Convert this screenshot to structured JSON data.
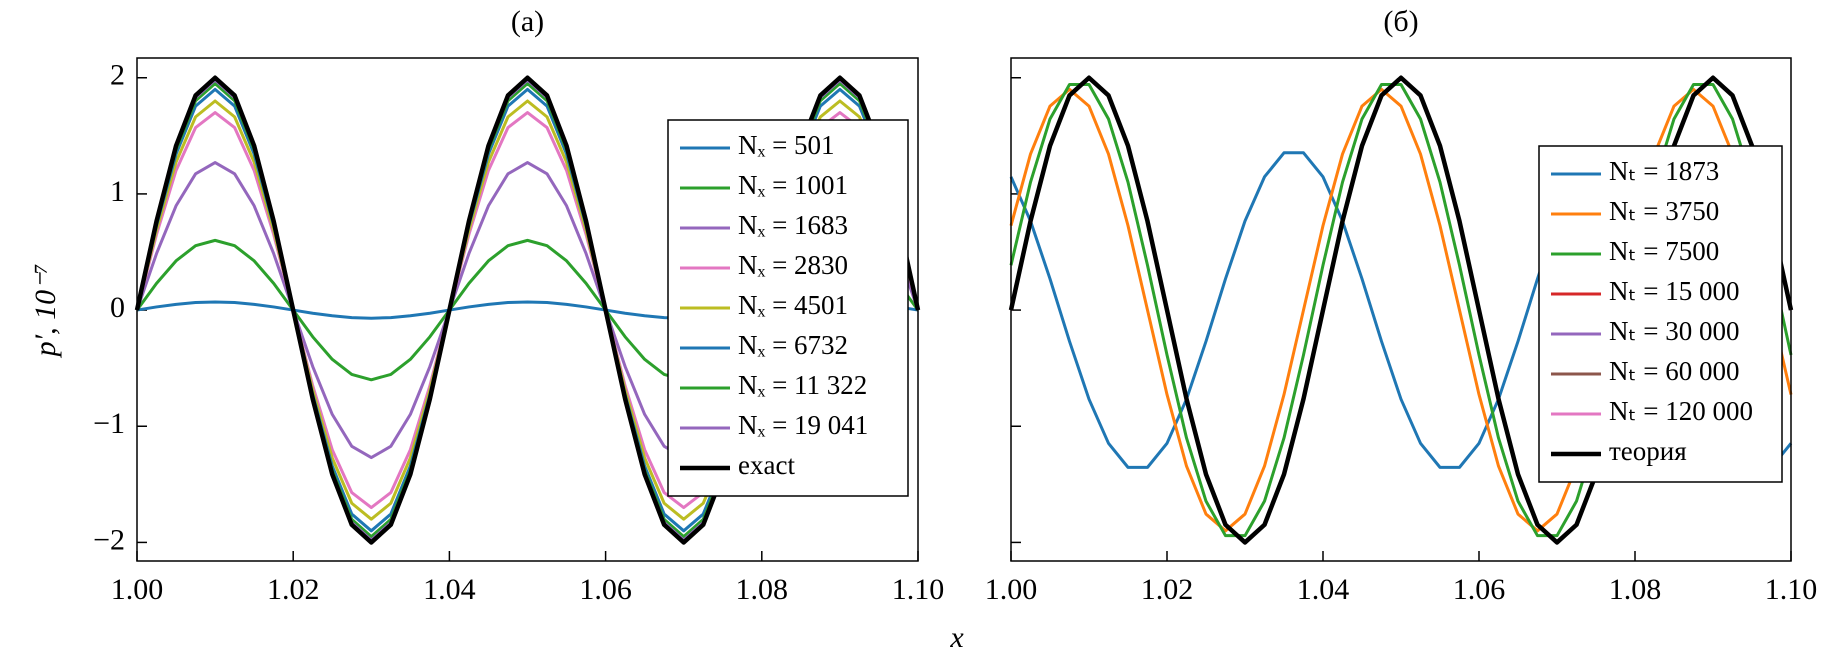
{
  "chart_data": [
    {
      "type": "line",
      "title": "(a)",
      "xlabel": "x",
      "ylabel": "p′, 10⁻⁷",
      "xlim": [
        1.0,
        1.1
      ],
      "ylim": [
        -2.16,
        2.17
      ],
      "xticks": [
        {
          "value": 1.0,
          "label": "1.00"
        },
        1.02,
        1.04,
        1.06,
        1.08,
        {
          "value": 1.1,
          "label": "1.10"
        }
      ],
      "yticks": [
        {
          "value": -2,
          "label": "−2"
        },
        {
          "value": -1,
          "label": "−1"
        },
        0,
        1,
        2
      ],
      "ytick_labels": true,
      "legend": "right",
      "x": [
        1.0,
        1.0025,
        1.005,
        1.0075,
        1.01,
        1.0125,
        1.015,
        1.0175,
        1.02,
        1.0225,
        1.025,
        1.0275,
        1.03,
        1.0325,
        1.035,
        1.0375,
        1.04,
        1.0425,
        1.045,
        1.0475,
        1.05,
        1.0525,
        1.055,
        1.0575,
        1.06,
        1.0625,
        1.065,
        1.0675,
        1.07,
        1.0725,
        1.075,
        1.0775,
        1.08,
        1.0825,
        1.085,
        1.0875,
        1.09,
        1.0925,
        1.095,
        1.0975,
        1.1
      ],
      "series": [
        {
          "name": "Nₓ = 501",
          "color": "#1f77b4",
          "values": [
            0,
            0.027,
            0.049,
            0.065,
            0.07,
            0.065,
            0.049,
            0.027,
            0,
            -0.027,
            -0.049,
            -0.065,
            -0.07,
            -0.065,
            -0.049,
            -0.027,
            0,
            0.027,
            0.049,
            0.065,
            0.07,
            0.065,
            0.049,
            0.027,
            0,
            -0.027,
            -0.049,
            -0.065,
            -0.07,
            -0.065,
            -0.049,
            -0.027,
            0,
            0.027,
            0.049,
            0.065,
            0.07,
            0.065,
            0.049,
            0.027,
            0
          ]
        },
        {
          "name": "Nₓ = 1001",
          "color": "#2ca02c",
          "values": [
            0,
            0.23,
            0.424,
            0.554,
            0.6,
            0.554,
            0.424,
            0.23,
            0,
            -0.23,
            -0.424,
            -0.554,
            -0.6,
            -0.554,
            -0.424,
            -0.23,
            0,
            0.23,
            0.424,
            0.554,
            0.6,
            0.554,
            0.424,
            0.23,
            0,
            -0.23,
            -0.424,
            -0.554,
            -0.6,
            -0.554,
            -0.424,
            -0.23,
            0,
            0.23,
            0.424,
            0.554,
            0.6,
            0.554,
            0.424,
            0.23,
            0
          ]
        },
        {
          "name": "Nₓ = 1683",
          "color": "#9467bd",
          "values": [
            0,
            0.486,
            0.898,
            1.173,
            1.27,
            1.173,
            0.898,
            0.486,
            0,
            -0.486,
            -0.898,
            -1.173,
            -1.27,
            -1.173,
            -0.898,
            -0.486,
            0,
            0.486,
            0.898,
            1.173,
            1.27,
            1.173,
            0.898,
            0.486,
            0,
            -0.486,
            -0.898,
            -1.173,
            -1.27,
            -1.173,
            -0.898,
            -0.486,
            0,
            0.486,
            0.898,
            1.173,
            1.27,
            1.173,
            0.898,
            0.486,
            0
          ]
        },
        {
          "name": "Nₓ = 2830",
          "color": "#e377c2",
          "values": [
            0,
            0.651,
            1.202,
            1.571,
            1.7,
            1.571,
            1.202,
            0.651,
            0,
            -0.651,
            -1.202,
            -1.571,
            -1.7,
            -1.571,
            -1.202,
            -0.651,
            0,
            0.651,
            1.202,
            1.571,
            1.7,
            1.571,
            1.202,
            0.651,
            0,
            -0.651,
            -1.202,
            -1.571,
            -1.7,
            -1.571,
            -1.202,
            -0.651,
            0,
            0.651,
            1.202,
            1.571,
            1.7,
            1.571,
            1.202,
            0.651,
            0
          ]
        },
        {
          "name": "Nₓ = 4501",
          "color": "#bcbd22",
          "values": [
            0,
            0.689,
            1.273,
            1.663,
            1.8,
            1.663,
            1.273,
            0.689,
            0,
            -0.689,
            -1.273,
            -1.663,
            -1.8,
            -1.663,
            -1.273,
            -0.689,
            0,
            0.689,
            1.273,
            1.663,
            1.8,
            1.663,
            1.273,
            0.689,
            0,
            -0.689,
            -1.273,
            -1.663,
            -1.8,
            -1.663,
            -1.273,
            -0.689,
            0,
            0.689,
            1.273,
            1.663,
            1.8,
            1.663,
            1.273,
            0.689,
            0
          ]
        },
        {
          "name": "Nₓ = 6732",
          "color": "#1f77b4",
          "values": [
            0,
            0.727,
            1.343,
            1.756,
            1.9,
            1.756,
            1.343,
            0.727,
            0,
            -0.727,
            -1.343,
            -1.756,
            -1.9,
            -1.756,
            -1.343,
            -0.727,
            0,
            0.727,
            1.343,
            1.756,
            1.9,
            1.756,
            1.343,
            0.727,
            0,
            -0.727,
            -1.343,
            -1.756,
            -1.9,
            -1.756,
            -1.343,
            -0.727,
            0,
            0.727,
            1.343,
            1.756,
            1.9,
            1.756,
            1.343,
            0.727,
            0
          ]
        },
        {
          "name": "Nₓ = 11 322",
          "color": "#2ca02c",
          "values": [
            0,
            0.746,
            1.379,
            1.802,
            1.95,
            1.802,
            1.379,
            0.746,
            0,
            -0.746,
            -1.379,
            -1.802,
            -1.95,
            -1.802,
            -1.379,
            -0.746,
            0,
            0.746,
            1.379,
            1.802,
            1.95,
            1.802,
            1.379,
            0.746,
            0,
            -0.746,
            -1.379,
            -1.802,
            -1.95,
            -1.802,
            -1.379,
            -0.746,
            0,
            0.746,
            1.379,
            1.802,
            1.95,
            1.802,
            1.379,
            0.746,
            0
          ]
        },
        {
          "name": "Nₓ = 19 041",
          "color": "#9467bd",
          "values": [
            0,
            0.758,
            1.4,
            1.829,
            1.98,
            1.829,
            1.4,
            0.758,
            0,
            -0.758,
            -1.4,
            -1.829,
            -1.98,
            -1.829,
            -1.4,
            -0.758,
            0,
            0.758,
            1.4,
            1.829,
            1.98,
            1.829,
            1.4,
            0.758,
            0,
            -0.758,
            -1.4,
            -1.829,
            -1.98,
            -1.829,
            -1.4,
            -0.758,
            0,
            0.758,
            1.4,
            1.829,
            1.98,
            1.829,
            1.4,
            0.758,
            0
          ]
        },
        {
          "name": "exact",
          "color": "#000000",
          "values": [
            0,
            0.765,
            1.414,
            1.848,
            2,
            1.848,
            1.414,
            0.765,
            0,
            -0.765,
            -1.414,
            -1.848,
            -2,
            -1.848,
            -1.414,
            -0.765,
            0,
            0.765,
            1.414,
            1.848,
            2,
            1.848,
            1.414,
            0.765,
            0,
            -0.765,
            -1.414,
            -1.848,
            -2,
            -1.848,
            -1.414,
            -0.765,
            0,
            0.765,
            1.414,
            1.848,
            2,
            1.848,
            1.414,
            0.765,
            0
          ]
        }
      ]
    },
    {
      "type": "line",
      "title": "(б)",
      "xlim": [
        1.0,
        1.1
      ],
      "ylim": [
        -2.16,
        2.17
      ],
      "xticks": [
        {
          "value": 1.0,
          "label": "1.00"
        },
        1.02,
        1.04,
        1.06,
        1.08,
        {
          "value": 1.1,
          "label": "1.10"
        }
      ],
      "yticks": [
        -2,
        -1,
        0,
        1,
        2
      ],
      "ytick_labels": false,
      "legend": "right",
      "x": [
        1.0,
        1.0025,
        1.005,
        1.0075,
        1.01,
        1.0125,
        1.015,
        1.0175,
        1.02,
        1.0225,
        1.025,
        1.0275,
        1.03,
        1.0325,
        1.035,
        1.0375,
        1.04,
        1.0425,
        1.045,
        1.0475,
        1.05,
        1.0525,
        1.055,
        1.0575,
        1.06,
        1.0625,
        1.065,
        1.0675,
        1.07,
        1.0725,
        1.075,
        1.0775,
        1.08,
        1.0825,
        1.085,
        1.0875,
        1.09,
        1.0925,
        1.095,
        1.0975,
        1.1
      ],
      "series": [
        {
          "name": "Nₜ = 1873",
          "color": "#1f77b4",
          "values": [
            1.147,
            0.767,
            0.269,
            -0.269,
            -0.767,
            -1.147,
            -1.354,
            -1.354,
            -1.147,
            -0.767,
            -0.269,
            0.269,
            0.767,
            1.147,
            1.354,
            1.354,
            1.147,
            0.767,
            0.269,
            -0.269,
            -0.767,
            -1.147,
            -1.354,
            -1.354,
            -1.147,
            -0.767,
            -0.269,
            0.269,
            0.767,
            1.147,
            1.354,
            1.354,
            1.147,
            0.767,
            0.269,
            -0.269,
            -0.767,
            -1.147,
            -1.354,
            -1.354,
            -1.147
          ]
        },
        {
          "name": "Nₜ = 3750",
          "color": "#ff7f0e",
          "values": [
            0.727,
            1.343,
            1.756,
            1.9,
            1.756,
            1.343,
            0.727,
            0,
            -0.727,
            -1.343,
            -1.756,
            -1.9,
            -1.756,
            -1.343,
            -0.727,
            0,
            0.727,
            1.343,
            1.756,
            1.9,
            1.756,
            1.343,
            0.727,
            0,
            -0.727,
            -1.343,
            -1.756,
            -1.9,
            -1.756,
            -1.343,
            -0.727,
            0,
            0.727,
            1.343,
            1.756,
            1.9,
            1.756,
            1.343,
            0.727,
            0,
            -0.727
          ]
        },
        {
          "name": "Nₜ = 7500",
          "color": "#2ca02c",
          "values": [
            0.386,
            1.101,
            1.645,
            1.942,
            1.942,
            1.645,
            1.101,
            0.386,
            -0.386,
            -1.101,
            -1.645,
            -1.942,
            -1.942,
            -1.645,
            -1.101,
            -0.386,
            0.386,
            1.101,
            1.645,
            1.942,
            1.942,
            1.645,
            1.101,
            0.386,
            -0.386,
            -1.101,
            -1.645,
            -1.942,
            -1.942,
            -1.645,
            -1.101,
            -0.386,
            0.386,
            1.101,
            1.645,
            1.942,
            1.942,
            1.645,
            1.101,
            0.386,
            -0.386
          ]
        },
        {
          "name": "Nₜ = 15 000",
          "color": "#d62728",
          "values": [
            0,
            0.765,
            1.414,
            1.848,
            2,
            1.848,
            1.414,
            0.765,
            0,
            -0.765,
            -1.414,
            -1.848,
            -2,
            -1.848,
            -1.414,
            -0.765,
            0,
            0.765,
            1.414,
            1.848,
            2,
            1.848,
            1.414,
            0.765,
            0,
            -0.765,
            -1.414,
            -1.848,
            -2,
            -1.848,
            -1.414,
            -0.765,
            0,
            0.765,
            1.414,
            1.848,
            2,
            1.848,
            1.414,
            0.765,
            0
          ]
        },
        {
          "name": "Nₜ = 30 000",
          "color": "#9467bd",
          "values": [
            0,
            0.765,
            1.414,
            1.848,
            2,
            1.848,
            1.414,
            0.765,
            0,
            -0.765,
            -1.414,
            -1.848,
            -2,
            -1.848,
            -1.414,
            -0.765,
            0,
            0.765,
            1.414,
            1.848,
            2,
            1.848,
            1.414,
            0.765,
            0,
            -0.765,
            -1.414,
            -1.848,
            -2,
            -1.848,
            -1.414,
            -0.765,
            0,
            0.765,
            1.414,
            1.848,
            2,
            1.848,
            1.414,
            0.765,
            0
          ]
        },
        {
          "name": "Nₜ = 60 000",
          "color": "#8c564b",
          "values": [
            0,
            0.765,
            1.414,
            1.848,
            2,
            1.848,
            1.414,
            0.765,
            0,
            -0.765,
            -1.414,
            -1.848,
            -2,
            -1.848,
            -1.414,
            -0.765,
            0,
            0.765,
            1.414,
            1.848,
            2,
            1.848,
            1.414,
            0.765,
            0,
            -0.765,
            -1.414,
            -1.848,
            -2,
            -1.848,
            -1.414,
            -0.765,
            0,
            0.765,
            1.414,
            1.848,
            2,
            1.848,
            1.414,
            0.765,
            0
          ]
        },
        {
          "name": "Nₜ = 120 000",
          "color": "#e377c2",
          "values": [
            0,
            0.765,
            1.414,
            1.848,
            2,
            1.848,
            1.414,
            0.765,
            0,
            -0.765,
            -1.414,
            -1.848,
            -2,
            -1.848,
            -1.414,
            -0.765,
            0,
            0.765,
            1.414,
            1.848,
            2,
            1.848,
            1.414,
            0.765,
            0,
            -0.765,
            -1.414,
            -1.848,
            -2,
            -1.848,
            -1.414,
            -0.765,
            0,
            0.765,
            1.414,
            1.848,
            2,
            1.848,
            1.414,
            0.765,
            0
          ]
        },
        {
          "name": "теория",
          "color": "#000000",
          "values": [
            0,
            0.765,
            1.414,
            1.848,
            2,
            1.848,
            1.414,
            0.765,
            0,
            -0.765,
            -1.414,
            -1.848,
            -2,
            -1.848,
            -1.414,
            -0.765,
            0,
            0.765,
            1.414,
            1.848,
            2,
            1.848,
            1.414,
            0.765,
            0,
            -0.765,
            -1.414,
            -1.848,
            -2,
            -1.848,
            -1.414,
            -0.765,
            0,
            0.765,
            1.414,
            1.848,
            2,
            1.848,
            1.414,
            0.765,
            0
          ]
        }
      ]
    }
  ]
}
